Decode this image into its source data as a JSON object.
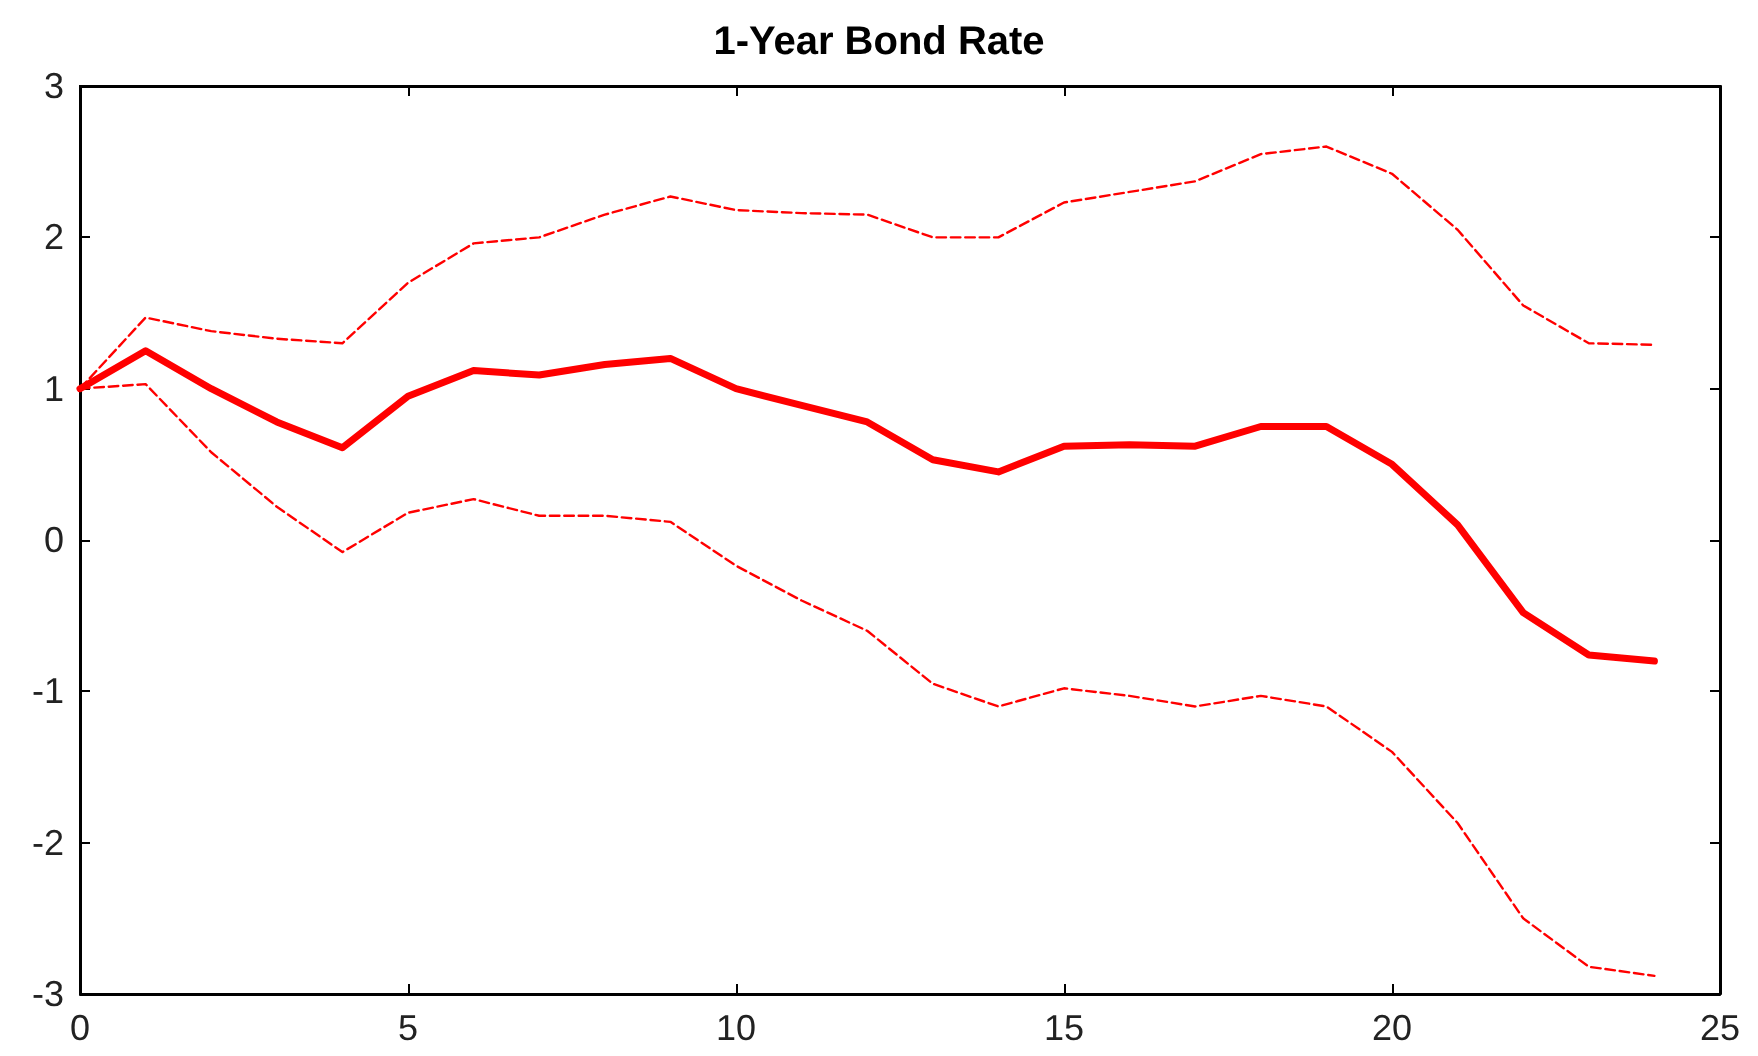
{
  "chart_data": {
    "type": "line",
    "title": "1-Year Bond Rate",
    "x": [
      0,
      1,
      2,
      3,
      4,
      5,
      6,
      7,
      8,
      9,
      10,
      11,
      12,
      13,
      14,
      15,
      16,
      17,
      18,
      19,
      20,
      21,
      22,
      23,
      24
    ],
    "series": [
      {
        "color": "#ff0000",
        "line_style": "solid",
        "values": [
          1,
          1.25,
          1.0,
          0.78,
          0.61,
          0.95,
          1.12,
          1.09,
          1.16,
          1.2,
          1.0,
          0.89,
          0.78,
          0.53,
          0.45,
          0.62,
          0.63,
          0.62,
          0.75,
          0.75,
          0.5,
          0.1,
          -0.48,
          -0.76,
          -0.8
        ]
      },
      {
        "color": "#ff0000",
        "line_style": "dashed",
        "values": [
          1,
          1.47,
          1.38,
          1.33,
          1.3,
          1.7,
          1.96,
          2.0,
          2.15,
          2.27,
          2.18,
          2.16,
          2.15,
          2.0,
          2.0,
          2.23,
          2.3,
          2.37,
          2.55,
          2.6,
          2.42,
          2.05,
          1.55,
          1.3,
          1.29
        ]
      },
      {
        "color": "#ff0000",
        "line_style": "dashed",
        "values": [
          1,
          1.03,
          0.58,
          0.22,
          -0.08,
          0.18,
          0.27,
          0.16,
          0.16,
          0.12,
          -0.17,
          -0.4,
          -0.6,
          -0.95,
          -1.1,
          -0.98,
          -1.03,
          -1.1,
          -1.03,
          -1.1,
          -1.4,
          -1.87,
          -2.5,
          -2.82,
          -2.88
        ]
      }
    ],
    "xlim": [
      0,
      25
    ],
    "xticks": [
      0,
      5,
      10,
      15,
      20,
      25
    ],
    "ylim": [
      -3,
      3
    ],
    "yticks": [
      -3,
      -2,
      -1,
      0,
      1,
      2,
      3
    ],
    "grid": false,
    "marker": "none"
  }
}
